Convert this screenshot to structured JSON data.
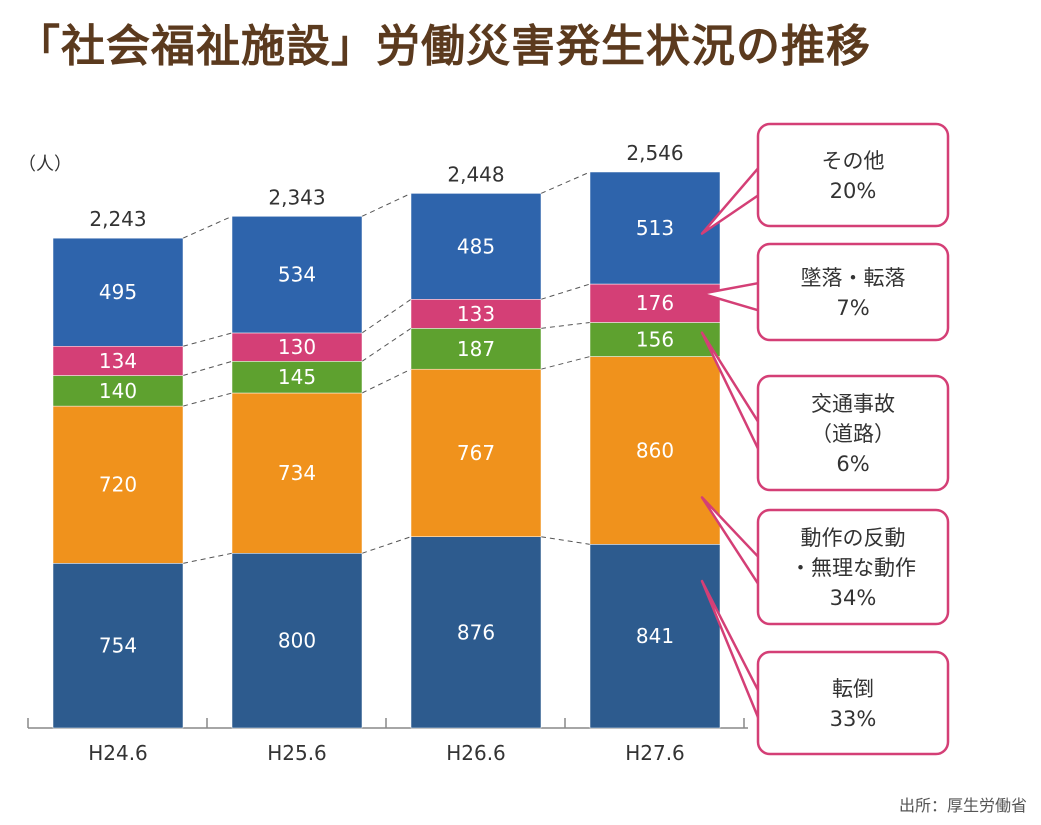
{
  "chart_data": {
    "type": "bar",
    "stacked": true,
    "title": "「社会福祉施設」労働災害発生状況の推移",
    "ylabel": "（人）",
    "categories": [
      "H24.6",
      "H25.6",
      "H26.6",
      "H27.6"
    ],
    "totals": [
      "2,243",
      "2,343",
      "2,448",
      "2,546"
    ],
    "ylim": [
      0,
      2546
    ],
    "series": [
      {
        "name": "転倒",
        "color": "#2d5b8e",
        "values": [
          754,
          800,
          876,
          841
        ]
      },
      {
        "name": "動作の反動・無理な動作",
        "color": "#f0921c",
        "values": [
          720,
          734,
          767,
          860
        ]
      },
      {
        "name": "交通事故（道路）",
        "color": "#5ea12f",
        "values": [
          140,
          145,
          187,
          156
        ]
      },
      {
        "name": "墜落・転落",
        "color": "#d43f76",
        "values": [
          134,
          130,
          133,
          176
        ]
      },
      {
        "name": "その他",
        "color": "#2e64ac",
        "values": [
          495,
          534,
          485,
          513
        ]
      }
    ],
    "callouts": [
      {
        "lines": [
          "その他",
          "20%"
        ],
        "series_index": 4
      },
      {
        "lines": [
          "墜落・転落",
          "7%"
        ],
        "series_index": 3
      },
      {
        "lines": [
          "交通事故",
          "（道路）",
          "6%"
        ],
        "series_index": 2
      },
      {
        "lines": [
          "動作の反動",
          "・無理な動作",
          "34%"
        ],
        "series_index": 1
      },
      {
        "lines": [
          "転倒",
          "33%"
        ],
        "series_index": 0
      }
    ],
    "callout_border_color": "#d43f76",
    "source": "出所：厚生労働省"
  }
}
